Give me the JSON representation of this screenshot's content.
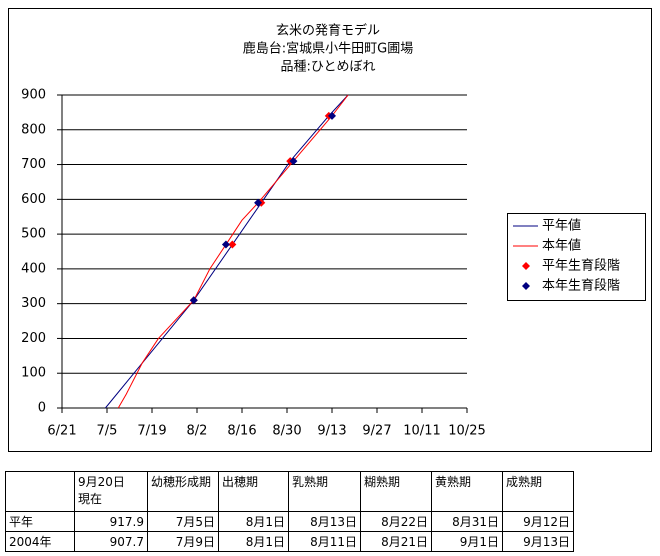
{
  "chart_data": {
    "type": "line",
    "title": [
      "玄米の発育モデル",
      "鹿島台:宮城県小牛田町G圃場",
      "品種:ひとめぼれ"
    ],
    "xlim": [
      0,
      126
    ],
    "xticks": [
      {
        "value": 0,
        "label": "6/21"
      },
      {
        "value": 14,
        "label": "7/5"
      },
      {
        "value": 28,
        "label": "7/19"
      },
      {
        "value": 42,
        "label": "8/2"
      },
      {
        "value": 56,
        "label": "8/16"
      },
      {
        "value": 70,
        "label": "8/30"
      },
      {
        "value": 84,
        "label": "9/13"
      },
      {
        "value": 98,
        "label": "9/27"
      },
      {
        "value": 112,
        "label": "10/11"
      },
      {
        "value": 126,
        "label": "10/25"
      }
    ],
    "ylim": [
      0,
      900
    ],
    "yticks": [
      0,
      100,
      200,
      300,
      400,
      500,
      600,
      700,
      800,
      900
    ],
    "grid": true,
    "legend": "right",
    "series": [
      {
        "name": "平年値",
        "type": "line",
        "color": "#000080",
        "x": [
          13.5,
          41,
          53,
          62,
          71,
          83,
          89
        ],
        "values": [
          0,
          310,
          470,
          590,
          710,
          840,
          900
        ]
      },
      {
        "name": "本年値",
        "type": "line",
        "color": "#ff0000",
        "x": [
          17.5,
          20,
          25,
          30,
          35,
          41,
          46,
          51,
          56,
          61,
          72,
          84,
          89
        ],
        "values": [
          0,
          40,
          130,
          200,
          250,
          310,
          400,
          470,
          540,
          590,
          710,
          840,
          900
        ]
      },
      {
        "name": "平年生育段階",
        "type": "scatter",
        "color": "#ff0000",
        "x": [
          41,
          53,
          62,
          71,
          83
        ],
        "values": [
          310,
          470,
          590,
          710,
          840
        ]
      },
      {
        "name": "本年生育段階",
        "type": "scatter",
        "color": "#000080",
        "x": [
          41,
          51,
          61,
          72,
          84
        ],
        "values": [
          310,
          470,
          590,
          710,
          840
        ]
      }
    ]
  },
  "table": {
    "rows": [
      [
        "",
        "9月20日\n現在",
        "幼穂形成期",
        "出穂期",
        "乳熟期",
        "糊熟期",
        "黄熟期",
        "成熟期"
      ],
      [
        "平年",
        "917.9",
        "7月5日",
        "8月1日",
        "8月13日",
        "8月22日",
        "8月31日",
        "9月12日"
      ],
      [
        "2004年",
        "907.7",
        "7月9日",
        "8月1日",
        "8月11日",
        "8月21日",
        "9月1日",
        "9月13日"
      ]
    ]
  }
}
